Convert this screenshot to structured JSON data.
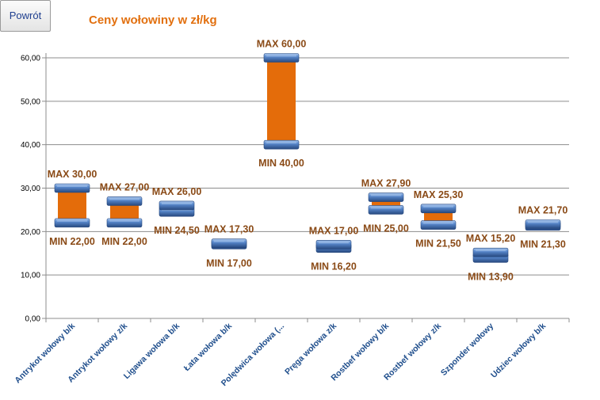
{
  "back_button": {
    "label": "Powrót"
  },
  "chart_data": {
    "type": "bar",
    "title": "Ceny wołowiny  w zł/kg",
    "xlabel": "",
    "ylabel": "",
    "ylim": [
      0,
      60
    ],
    "y_ticks": [
      "0,00",
      "10,00",
      "20,00",
      "30,00",
      "40,00",
      "50,00",
      "60,00"
    ],
    "grid": true,
    "categories": [
      "Antrykot wołowy b/k",
      "Antrykot wołowy z/k",
      "Ligawa wołowa b/k",
      "Łata wołowa b/k",
      "Polędwica wołowa (...",
      "Pręga wołowa z/k",
      "Rostbef wołowy b/k",
      "Rostbef wołowy z/k",
      "Szponder wołowy",
      "Udziec wołowy b/k"
    ],
    "series": [
      {
        "name": "MIN",
        "values": [
          22.0,
          22.0,
          24.5,
          17.0,
          40.0,
          16.2,
          25.0,
          21.5,
          13.9,
          21.3
        ]
      },
      {
        "name": "MAX",
        "values": [
          30.0,
          27.0,
          26.0,
          17.3,
          60.0,
          17.0,
          27.9,
          25.3,
          15.2,
          21.7
        ]
      }
    ],
    "min_labels": [
      "MIN 22,00",
      "MIN 22,00",
      "MIN 24,50",
      "MIN 17,00",
      "MIN 40,00",
      "MIN 16,20",
      "MIN 25,00",
      "MIN 21,50",
      "MIN 13,90",
      "MIN 21,30"
    ],
    "max_labels": [
      "MAX 30,00",
      "MAX 27,00",
      "MAX 26,00",
      "MAX 17,30",
      "MAX 60,00",
      "MAX 17,00",
      "MAX 27,90",
      "MAX 25,30",
      "MAX 15,20",
      "MAX 21,70"
    ],
    "colors": {
      "range_fill": "#e46c0a",
      "cap": "#4a78b8",
      "cap_dark": "#24467c",
      "cap_light": "#9bbbe6"
    }
  }
}
